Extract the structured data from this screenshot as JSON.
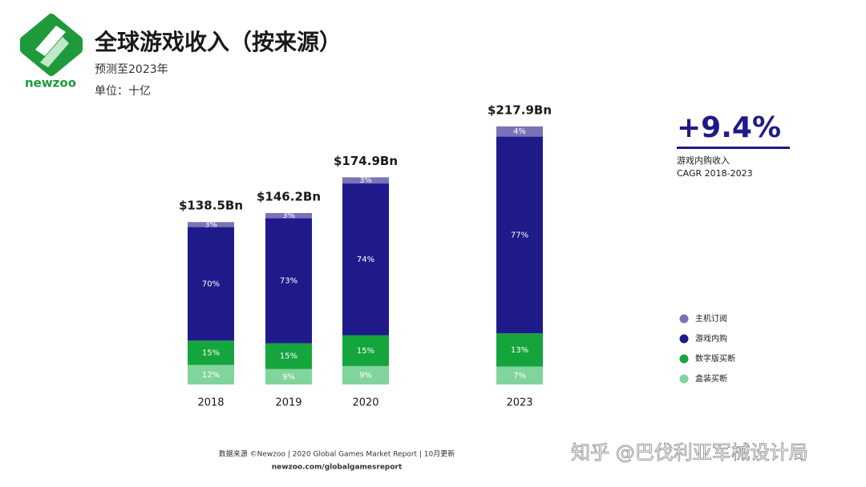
{
  "header": {
    "logo": "newzoo",
    "title": "全球游戏收入（按来源）",
    "subtitle": "预测至2023年",
    "unit": "单位：十亿"
  },
  "chart_data": {
    "type": "stacked_bar",
    "categories": [
      "2018",
      "2019",
      "2020",
      "2023"
    ],
    "totals": {
      "values": [
        138.5,
        146.2,
        174.9,
        217.9
      ],
      "value_labels": [
        "$138.5Bn",
        "$146.2Bn",
        "$174.9Bn",
        "$217.9Bn"
      ]
    },
    "series": [
      {
        "name": "主机订阅",
        "color": "#7b72b8",
        "values": [
          3,
          3,
          3,
          4
        ],
        "value_labels": [
          "3%",
          "3%",
          "3%",
          "4%"
        ]
      },
      {
        "name": "游戏内购",
        "color": "#1f1a8a",
        "values": [
          70,
          73,
          74,
          77
        ],
        "value_labels": [
          "70%",
          "73%",
          "74%",
          "77%"
        ]
      },
      {
        "name": "数字版买断",
        "color": "#14a53c",
        "values": [
          15,
          15,
          15,
          13
        ],
        "value_labels": [
          "15%",
          "15%",
          "15%",
          "13%"
        ]
      },
      {
        "name": "盒装买断",
        "color": "#80d49c",
        "values": [
          12,
          9,
          9,
          7
        ],
        "value_labels": [
          "12%",
          "9%",
          "9%",
          "7%"
        ]
      }
    ],
    "legend": "right"
  },
  "callout": {
    "value": "+9.4%",
    "label": "游戏内购收入",
    "sublabel": "CAGR 2018-2023"
  },
  "footer": {
    "source": "数据来源 ©Newzoo | 2020 Global Games Market Report | 10月更新",
    "url": "newzoo.com/globalgamesreport"
  },
  "watermark": "知乎 @巴伐利亚军械设计局"
}
